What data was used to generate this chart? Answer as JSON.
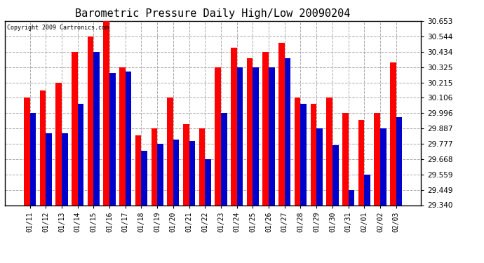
{
  "title": "Barometric Pressure Daily High/Low 20090204",
  "copyright_text": "Copyright 2009 Cartronics.com",
  "labels": [
    "01/11",
    "01/12",
    "01/13",
    "01/14",
    "01/15",
    "01/16",
    "01/17",
    "01/18",
    "01/19",
    "01/20",
    "01/21",
    "01/22",
    "01/23",
    "01/24",
    "01/25",
    "01/26",
    "01/27",
    "01/28",
    "01/29",
    "01/30",
    "01/31",
    "02/01",
    "02/02",
    "02/03"
  ],
  "high": [
    30.106,
    30.16,
    30.215,
    30.434,
    30.544,
    30.653,
    30.325,
    29.84,
    29.887,
    30.106,
    29.92,
    29.887,
    30.325,
    30.465,
    30.39,
    30.434,
    30.5,
    30.106,
    30.065,
    30.106,
    29.996,
    29.95,
    29.996,
    30.36
  ],
  "low": [
    29.996,
    29.855,
    29.855,
    30.062,
    30.434,
    30.285,
    30.295,
    29.73,
    29.777,
    29.81,
    29.8,
    29.668,
    29.996,
    30.325,
    30.325,
    30.325,
    30.39,
    30.062,
    29.887,
    29.77,
    29.449,
    29.557,
    29.887,
    29.97
  ],
  "ylim_min": 29.34,
  "ylim_max": 30.653,
  "yticks": [
    29.34,
    29.449,
    29.559,
    29.668,
    29.777,
    29.887,
    29.996,
    30.106,
    30.215,
    30.325,
    30.434,
    30.544,
    30.653
  ],
  "high_color": "#ff0000",
  "low_color": "#0000cc",
  "bg_color": "#ffffff",
  "plot_bg_color": "#ffffff",
  "title_fontsize": 11,
  "bar_width": 0.38,
  "grid_color": "#aaaaaa",
  "grid_linestyle": "--"
}
